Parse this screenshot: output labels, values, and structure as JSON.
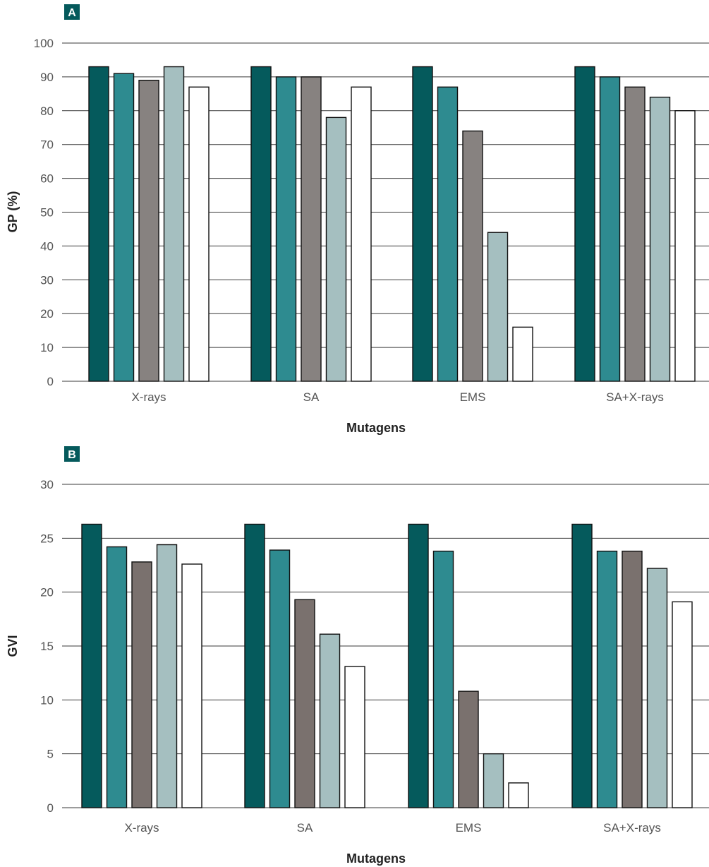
{
  "chart_data": [
    {
      "type": "bar",
      "panel_label": "A",
      "title": "",
      "xlabel": "Mutagens",
      "ylabel": "GP (%)",
      "ylim": [
        0,
        100
      ],
      "yticks": [
        0,
        10,
        20,
        30,
        40,
        50,
        60,
        70,
        80,
        90,
        100
      ],
      "grid": true,
      "categories": [
        "X-rays",
        "SA",
        "EMS",
        "SA+X-rays"
      ],
      "series_colors": [
        "#055a5c",
        "#2e8b90",
        "#878280",
        "#a5bfc0",
        "#ffffff"
      ],
      "series": [
        {
          "values": [
            93,
            93,
            93,
            93
          ]
        },
        {
          "values": [
            91,
            90,
            87,
            90
          ]
        },
        {
          "values": [
            89,
            90,
            74,
            87
          ]
        },
        {
          "values": [
            93,
            78,
            44,
            84
          ]
        },
        {
          "values": [
            87,
            87,
            16,
            80
          ]
        }
      ]
    },
    {
      "type": "bar",
      "panel_label": "B",
      "title": "",
      "xlabel": "Mutagens",
      "ylabel": "GVI",
      "ylim": [
        0,
        30
      ],
      "yticks": [
        0,
        5,
        10,
        15,
        20,
        25,
        30
      ],
      "grid": true,
      "categories": [
        "X-rays",
        "SA",
        "EMS",
        "SA+X-rays"
      ],
      "series_colors": [
        "#055a5c",
        "#2e8b90",
        "#7a716e",
        "#a5bfc0",
        "#ffffff"
      ],
      "series": [
        {
          "values": [
            26.3,
            26.3,
            26.3,
            26.3
          ]
        },
        {
          "values": [
            24.2,
            23.9,
            23.8,
            23.8
          ]
        },
        {
          "values": [
            22.8,
            19.3,
            10.8,
            23.8
          ]
        },
        {
          "values": [
            24.4,
            16.1,
            5.0,
            22.2
          ]
        },
        {
          "values": [
            22.6,
            13.1,
            2.3,
            19.1
          ]
        }
      ]
    }
  ]
}
